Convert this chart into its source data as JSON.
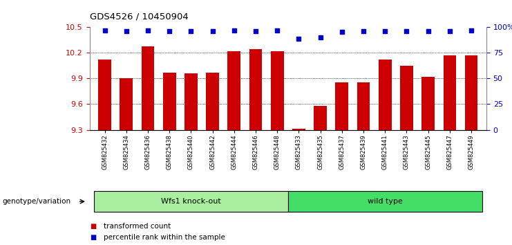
{
  "title": "GDS4526 / 10450904",
  "samples": [
    "GSM825432",
    "GSM825434",
    "GSM825436",
    "GSM825438",
    "GSM825440",
    "GSM825442",
    "GSM825444",
    "GSM825446",
    "GSM825448",
    "GSM825433",
    "GSM825435",
    "GSM825437",
    "GSM825439",
    "GSM825441",
    "GSM825443",
    "GSM825445",
    "GSM825447",
    "GSM825449"
  ],
  "bar_values": [
    10.12,
    9.9,
    10.27,
    9.97,
    9.96,
    9.97,
    10.22,
    10.24,
    10.22,
    9.31,
    9.58,
    9.85,
    9.85,
    10.12,
    10.05,
    9.92,
    10.17,
    10.17
  ],
  "percentile_values": [
    10.46,
    10.45,
    10.46,
    10.45,
    10.45,
    10.45,
    10.46,
    10.45,
    10.46,
    10.36,
    10.38,
    10.44,
    10.45,
    10.45,
    10.45,
    10.45,
    10.45,
    10.46
  ],
  "groups": [
    {
      "label": "Wfs1 knock-out",
      "start": 0,
      "end": 9,
      "color": "#AAEEA0"
    },
    {
      "label": "wild type",
      "start": 9,
      "end": 18,
      "color": "#44DD66"
    }
  ],
  "ylim": [
    9.3,
    10.5
  ],
  "yticks": [
    9.3,
    9.6,
    9.9,
    10.2,
    10.5
  ],
  "ytick_labels": [
    "9.3",
    "9.6",
    "9.9",
    "10.2",
    "10.5"
  ],
  "right_yticks": [
    0,
    25,
    50,
    75,
    100
  ],
  "right_ytick_labels": [
    "0",
    "25",
    "50",
    "75",
    "100%"
  ],
  "gridlines": [
    9.6,
    9.9,
    10.2
  ],
  "bar_color": "#CC0000",
  "dot_color": "#0000CC",
  "bar_width": 0.6,
  "legend_items": [
    {
      "label": "transformed count",
      "color": "#CC0000"
    },
    {
      "label": "percentile rank within the sample",
      "color": "#0000CC"
    }
  ],
  "genotype_label": "genotype/variation",
  "bg_color": "#ffffff",
  "tick_label_color_left": "#CC0000",
  "tick_label_color_right": "#0000CC"
}
